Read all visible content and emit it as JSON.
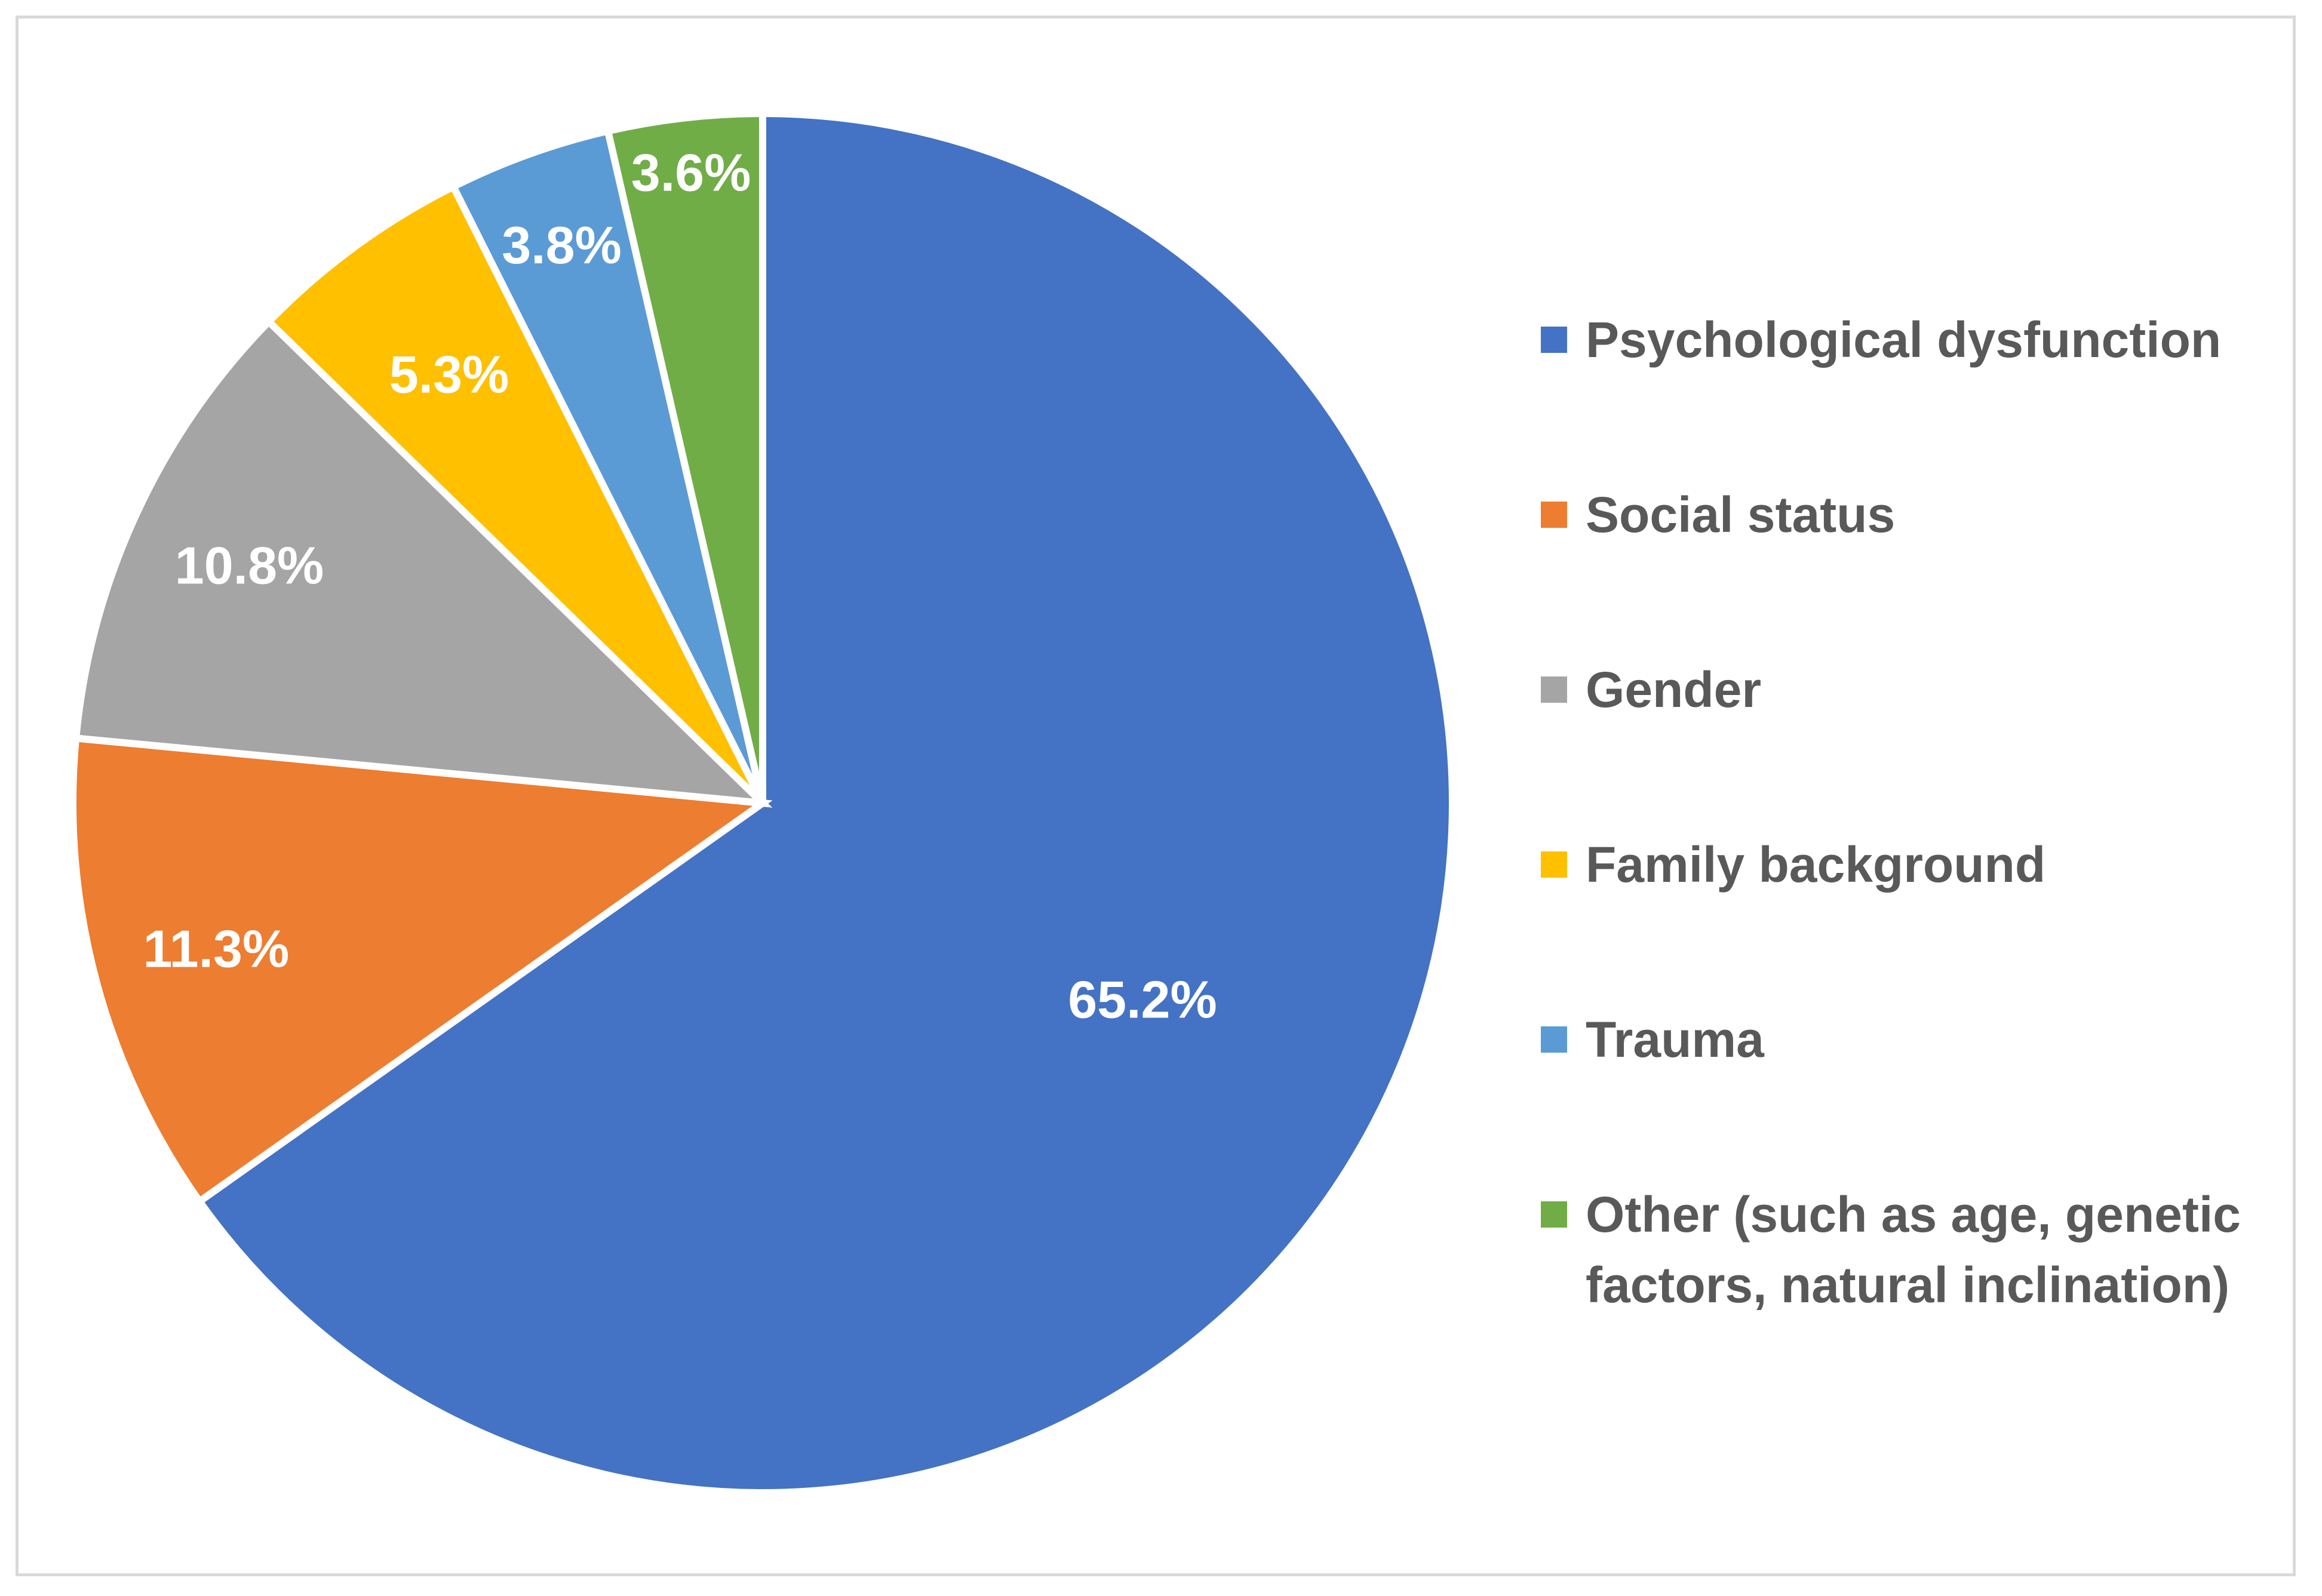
{
  "chart_data": {
    "type": "pie",
    "title": "",
    "series": [
      {
        "name": "Influencing factors",
        "values": [
          65.2,
          11.3,
          10.8,
          5.3,
          3.8,
          3.6
        ]
      }
    ],
    "categories": [
      "Psychological dysfunction",
      "Social status",
      "Gender",
      "Family background",
      "Trauma",
      "Other (such as age, genetic factors, natural inclination)"
    ],
    "data_labels": [
      "65.2%",
      "11.3%",
      "10.8%",
      "5.3%",
      "3.8%",
      "3.6%"
    ],
    "colors": [
      "#4472c4",
      "#ed7d31",
      "#a5a5a5",
      "#ffc000",
      "#5b9bd5",
      "#70ad47"
    ],
    "start_angle_deg": 0,
    "direction": "clockwise",
    "legend_position": "right"
  }
}
